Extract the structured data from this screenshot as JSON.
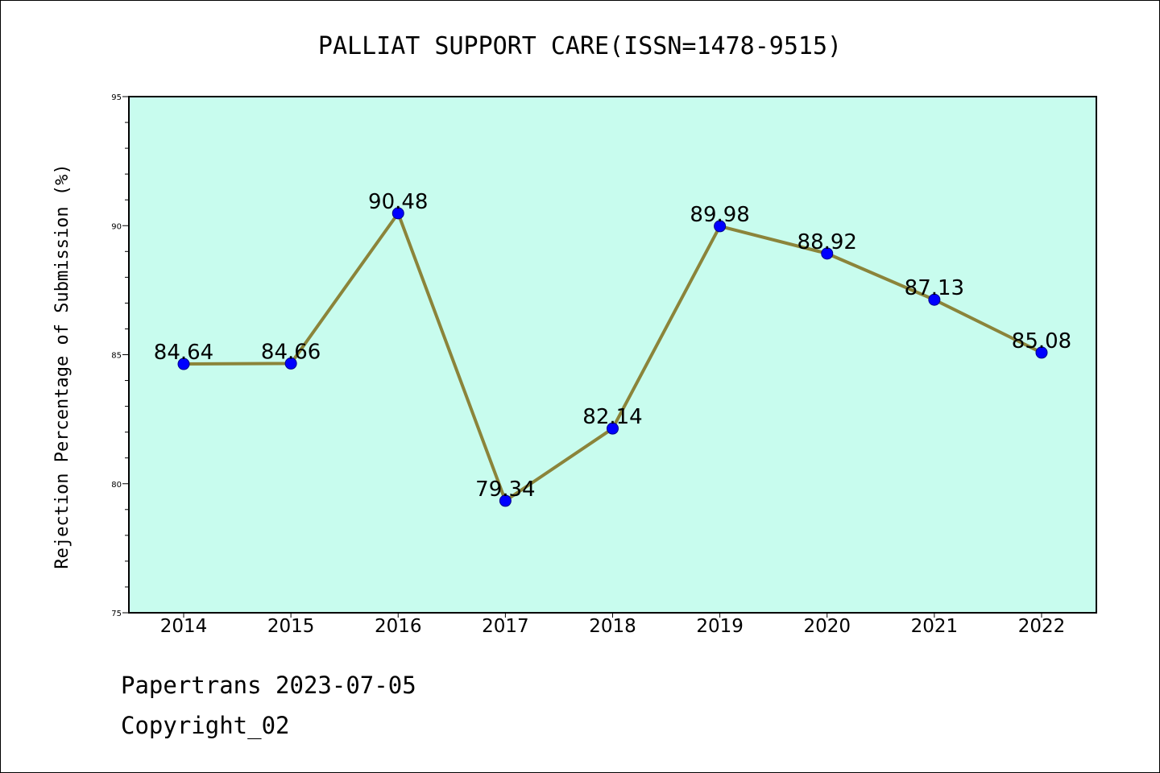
{
  "chart_data": {
    "type": "line",
    "title": "PALLIAT SUPPORT CARE(ISSN=1478-9515)",
    "xlabel": "",
    "ylabel": "Rejection Percentage of Submission (%)",
    "categories": [
      "2014",
      "2015",
      "2016",
      "2017",
      "2018",
      "2019",
      "2020",
      "2021",
      "2022"
    ],
    "series": [
      {
        "values": [
          84.64,
          84.66,
          90.48,
          79.34,
          82.14,
          89.98,
          88.92,
          87.13,
          85.08
        ],
        "labels": [
          "84.64",
          "84.66",
          "90.48",
          "79.34",
          "82.14",
          "89.98",
          "88.92",
          "87.13",
          "85.08"
        ],
        "line_color": "#8b843a",
        "marker_color": "#0000ff"
      }
    ],
    "ylim": [
      75,
      95
    ],
    "yticks": [
      "75",
      "80",
      "85",
      "90",
      "95"
    ],
    "plot_background": "#c8fcee",
    "grid": false,
    "legend": "none"
  },
  "footer": {
    "line1": "Papertrans 2023-07-05",
    "line2": "Copyright_02"
  }
}
